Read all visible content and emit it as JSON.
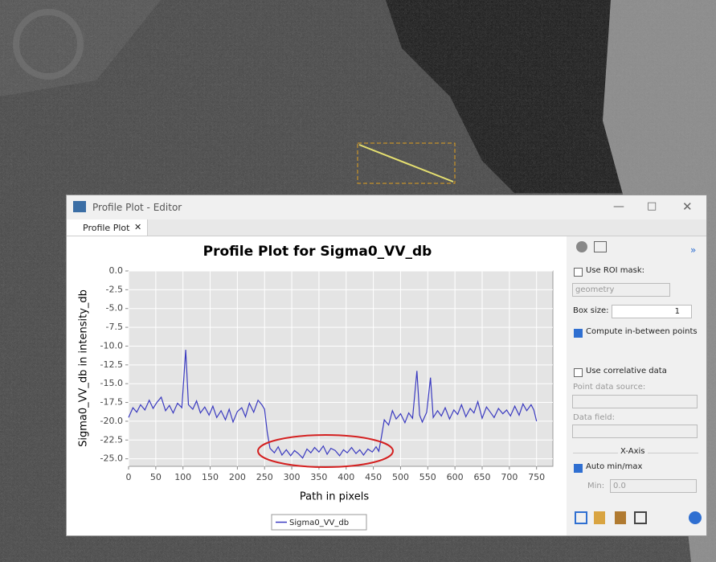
{
  "window": {
    "title": "Profile Plot - Editor",
    "tab": "Profile Plot"
  },
  "side_panel": {
    "more": "»",
    "use_roi_mask": "Use ROI mask:",
    "mask_name": "geometry",
    "box_size_label": "Box size:",
    "box_size": "1",
    "compute_between": "Compute in-between points",
    "use_correlative": "Use correlative data",
    "point_source": "Point data source:",
    "data_field": "Data field:",
    "x_axis": "X-Axis",
    "auto_minmax": "Auto min/max",
    "min_label": "Min:",
    "min_value": "0.0"
  },
  "chart_data": {
    "type": "line",
    "title": "Profile Plot for Sigma0_VV_db",
    "x_label": "Path in pixels",
    "y_label": "Sigma0_VV_db in intensity_db",
    "x": [
      0,
      8,
      15,
      22,
      30,
      38,
      45,
      52,
      60,
      68,
      75,
      82,
      90,
      98,
      105,
      110,
      118,
      125,
      132,
      140,
      148,
      155,
      162,
      170,
      178,
      185,
      192,
      200,
      208,
      215,
      222,
      230,
      238,
      245,
      250,
      255,
      260,
      268,
      275,
      282,
      290,
      298,
      305,
      312,
      320,
      328,
      335,
      342,
      350,
      358,
      365,
      372,
      380,
      388,
      395,
      402,
      410,
      418,
      425,
      432,
      440,
      448,
      455,
      460,
      465,
      470,
      478,
      485,
      492,
      500,
      508,
      515,
      522,
      530,
      535,
      540,
      548,
      555,
      560,
      568,
      575,
      582,
      590,
      598,
      605,
      612,
      620,
      628,
      635,
      642,
      650,
      658,
      665,
      672,
      680,
      688,
      695,
      702,
      710,
      718,
      725,
      732,
      740,
      745,
      750
    ],
    "series": [
      {
        "name": "Sigma0_VV_db",
        "color": "#3a3ac0",
        "values": [
          -19.5,
          -18.2,
          -18.8,
          -17.8,
          -18.5,
          -17.2,
          -18.3,
          -17.5,
          -16.8,
          -18.6,
          -17.9,
          -18.9,
          -17.6,
          -18.2,
          -10.5,
          -17.8,
          -18.4,
          -17.3,
          -18.9,
          -18.1,
          -19.2,
          -18.0,
          -19.5,
          -18.6,
          -19.8,
          -18.4,
          -20.1,
          -18.7,
          -18.2,
          -19.4,
          -17.6,
          -18.8,
          -17.2,
          -17.8,
          -18.4,
          -21.5,
          -23.6,
          -24.2,
          -23.4,
          -24.5,
          -23.8,
          -24.6,
          -23.9,
          -24.3,
          -24.9,
          -23.7,
          -24.2,
          -23.5,
          -24.1,
          -23.3,
          -24.4,
          -23.6,
          -23.9,
          -24.6,
          -23.8,
          -24.2,
          -23.5,
          -24.3,
          -23.8,
          -24.5,
          -23.7,
          -24.1,
          -23.4,
          -24.0,
          -22.0,
          -19.8,
          -20.5,
          -18.6,
          -19.7,
          -19.0,
          -20.2,
          -18.9,
          -19.6,
          -13.3,
          -19.2,
          -20.1,
          -18.8,
          -14.2,
          -19.5,
          -18.6,
          -19.3,
          -18.2,
          -19.7,
          -18.5,
          -19.1,
          -17.8,
          -19.4,
          -18.3,
          -18.9,
          -17.4,
          -19.6,
          -18.1,
          -18.8,
          -19.5,
          -18.3,
          -19.0,
          -18.5,
          -19.3,
          -18.0,
          -19.2,
          -17.7,
          -18.6,
          -17.8,
          -18.5,
          -20.0
        ]
      }
    ],
    "xlim": [
      0,
      780
    ],
    "ylim": [
      -26,
      0
    ],
    "xticks": [
      0,
      50,
      100,
      150,
      200,
      250,
      300,
      350,
      400,
      450,
      500,
      550,
      600,
      650,
      700,
      750
    ],
    "yticks": [
      {
        "value": 0,
        "label": "0.0"
      },
      -2.5,
      {
        "value": -5,
        "label": "-5.0"
      },
      -7.5,
      {
        "value": -10,
        "label": "-10.0"
      },
      -12.5,
      {
        "value": -15,
        "label": "-15.0"
      },
      -17.5,
      {
        "value": -20,
        "label": "-20.0"
      },
      -22.5,
      {
        "value": -25,
        "label": "-25.0"
      }
    ],
    "grid": true,
    "legend": "bottom"
  }
}
